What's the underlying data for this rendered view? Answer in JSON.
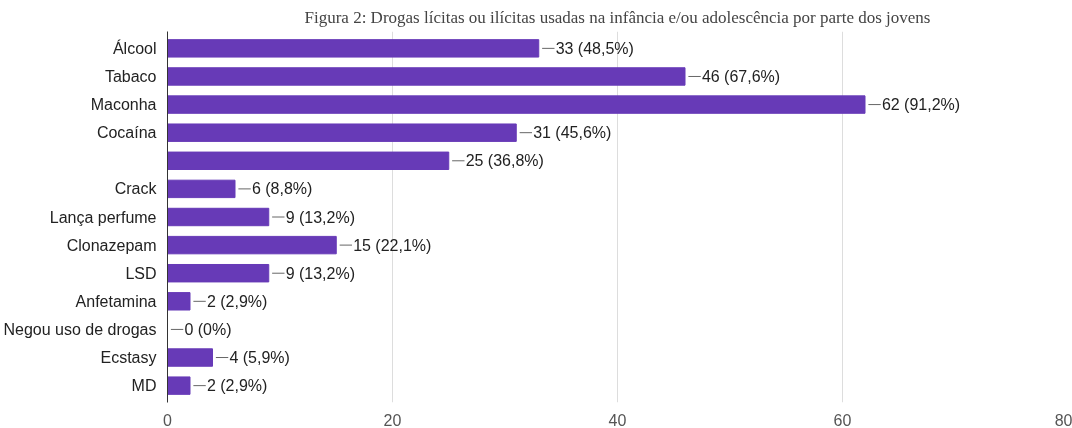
{
  "chart_data": {
    "type": "bar",
    "orientation": "horizontal",
    "title": "Figura 2: Drogas lícitas ou ilícitas usadas na infância e/ou adolescência por parte dos jovens",
    "categories": [
      "Álcool",
      "Tabaco",
      "Maconha",
      "Cocaína",
      null,
      "Crack",
      "Lança perfume",
      "Clonazepam",
      "LSD",
      "Anfetamina",
      "Negou uso de drogas",
      "Ecstasy",
      "MD"
    ],
    "values": [
      33,
      46,
      62,
      31,
      25,
      6,
      9,
      15,
      9,
      2,
      0,
      4,
      2
    ],
    "value_labels": [
      "33 (48,5%)",
      "46 (67,6%)",
      "62 (91,2%)",
      "31 (45,6%)",
      "25 (36,8%)",
      "6 (8,8%)",
      "9 (13,2%)",
      "15 (22,1%)",
      "9 (13,2%)",
      "2 (2,9%)",
      "0 (0%)",
      "4 (5,9%)",
      "2 (2,9%)"
    ],
    "color": "#673ab7",
    "xlim": [
      0,
      80
    ],
    "xticks": [
      0,
      20,
      40,
      60,
      80
    ],
    "grid": "x"
  }
}
